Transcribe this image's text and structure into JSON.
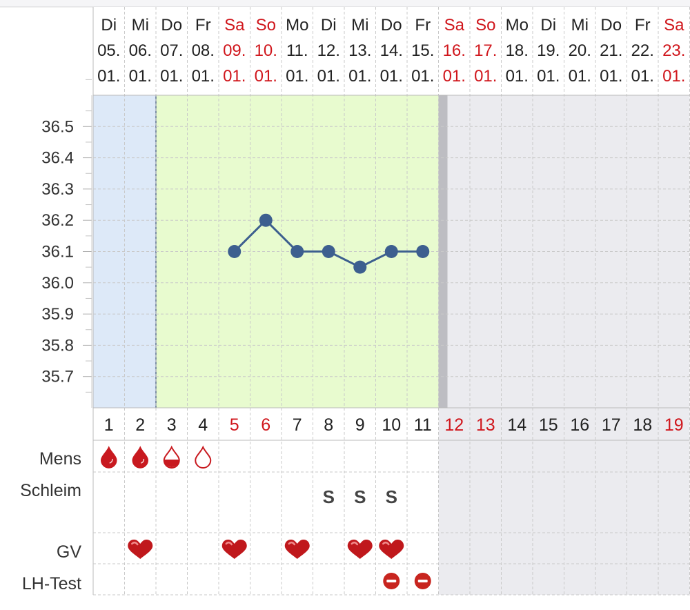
{
  "colors": {
    "weekend_text": "#d0161c",
    "menstruation_bg": "#dde9f8",
    "fertile_bg": "#e8fbcf",
    "future_bg": "#ebebef",
    "line": "#3d5f8f",
    "blood": "#c8191f",
    "grid": "#c9c9c9"
  },
  "columns": [
    {
      "wd": "Di",
      "dd": "05.",
      "mm": "01.",
      "num": "1",
      "weekend": false,
      "phase": "mens"
    },
    {
      "wd": "Mi",
      "dd": "06.",
      "mm": "01.",
      "num": "2",
      "weekend": false,
      "phase": "mens"
    },
    {
      "wd": "Do",
      "dd": "07.",
      "mm": "01.",
      "num": "3",
      "weekend": false,
      "phase": "fertile"
    },
    {
      "wd": "Fr",
      "dd": "08.",
      "mm": "01.",
      "num": "4",
      "weekend": false,
      "phase": "fertile"
    },
    {
      "wd": "Sa",
      "dd": "09.",
      "mm": "01.",
      "num": "5",
      "weekend": true,
      "phase": "fertile"
    },
    {
      "wd": "So",
      "dd": "10.",
      "mm": "01.",
      "num": "6",
      "weekend": true,
      "phase": "fertile"
    },
    {
      "wd": "Mo",
      "dd": "11.",
      "mm": "01.",
      "num": "7",
      "weekend": false,
      "phase": "fertile"
    },
    {
      "wd": "Di",
      "dd": "12.",
      "mm": "01.",
      "num": "8",
      "weekend": false,
      "phase": "fertile"
    },
    {
      "wd": "Mi",
      "dd": "13.",
      "mm": "01.",
      "num": "9",
      "weekend": false,
      "phase": "fertile"
    },
    {
      "wd": "Do",
      "dd": "14.",
      "mm": "01.",
      "num": "10",
      "weekend": false,
      "phase": "fertile"
    },
    {
      "wd": "Fr",
      "dd": "15.",
      "mm": "01.",
      "num": "11",
      "weekend": false,
      "phase": "fertile"
    },
    {
      "wd": "Sa",
      "dd": "16.",
      "mm": "01.",
      "num": "12",
      "weekend": true,
      "phase": "future"
    },
    {
      "wd": "So",
      "dd": "17.",
      "mm": "01.",
      "num": "13",
      "weekend": true,
      "phase": "future"
    },
    {
      "wd": "Mo",
      "dd": "18.",
      "mm": "01.",
      "num": "14",
      "weekend": false,
      "phase": "future"
    },
    {
      "wd": "Di",
      "dd": "19.",
      "mm": "01.",
      "num": "15",
      "weekend": false,
      "phase": "future"
    },
    {
      "wd": "Mi",
      "dd": "20.",
      "mm": "01.",
      "num": "16",
      "weekend": false,
      "phase": "future"
    },
    {
      "wd": "Do",
      "dd": "21.",
      "mm": "01.",
      "num": "17",
      "weekend": false,
      "phase": "future"
    },
    {
      "wd": "Fr",
      "dd": "22.",
      "mm": "01.",
      "num": "18",
      "weekend": false,
      "phase": "future"
    },
    {
      "wd": "Sa",
      "dd": "23.",
      "mm": "01.",
      "num": "19",
      "weekend": true,
      "phase": "future"
    }
  ],
  "rows": {
    "mens": "Mens",
    "schleim": "Schleim",
    "gv": "GV",
    "lh": "LH-Test"
  },
  "chart_data": {
    "type": "line",
    "x_label_type": "cycle day",
    "ylim": [
      35.6,
      36.6
    ],
    "yticks": [
      "36.5",
      "36.4",
      "36.3",
      "36.2",
      "36.1",
      "36.0",
      "35.9",
      "35.8",
      "35.7"
    ],
    "grid": true,
    "series": [
      {
        "x": [
          5,
          6,
          7,
          8,
          9,
          10,
          11
        ],
        "values": [
          36.1,
          36.2,
          36.1,
          36.1,
          36.05,
          36.1,
          36.1
        ]
      }
    ]
  },
  "markers": {
    "mens": [
      {
        "day": 1,
        "level": "full"
      },
      {
        "day": 2,
        "level": "full"
      },
      {
        "day": 3,
        "level": "half"
      },
      {
        "day": 4,
        "level": "empty"
      }
    ],
    "schleim": [
      {
        "day": 8,
        "text": "S"
      },
      {
        "day": 9,
        "text": "S"
      },
      {
        "day": 10,
        "text": "S"
      }
    ],
    "gv": [
      2,
      5,
      7,
      9,
      10
    ],
    "lh": [
      {
        "day": 10,
        "result": "negative"
      },
      {
        "day": 11,
        "result": "negative"
      }
    ]
  }
}
